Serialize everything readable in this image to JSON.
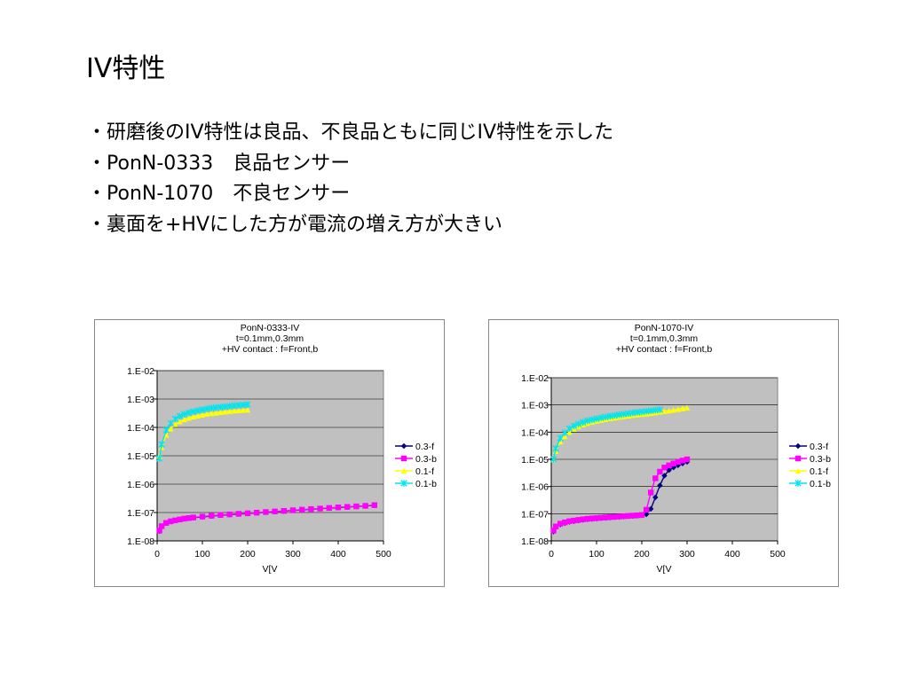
{
  "slide": {
    "title": "IV特性",
    "bullets": [
      "・研磨後のIV特性は良品、不良品ともに同じIV特性を示した",
      "・PonN-0333　良品センサー",
      "・PonN-1070　不良センサー",
      "・裏面を+HVにした方が電流の増え方が大きい"
    ]
  },
  "chart_data": [
    {
      "type": "scatter",
      "title": "PonN-0333-IV",
      "subtitle": [
        "t=0.1mm,0.3mm",
        "+HV contact : f=Front,b"
      ],
      "xlabel": "V[V",
      "ylabel": "",
      "xlim": [
        0,
        500
      ],
      "ylim": [
        1e-08,
        0.01
      ],
      "yscale": "log",
      "xticks": [
        0,
        100,
        200,
        300,
        400,
        500
      ],
      "yticks": [
        "1.E-08",
        "1.E-07",
        "1.E-06",
        "1.E-05",
        "1.E-04",
        "1.E-03",
        "1.E-02"
      ],
      "grid": true,
      "plot_background": "#c0c0c0",
      "legend_position": "right",
      "legend": [
        "0.3-f",
        "0.3-b",
        "0.1-f",
        "0.1-b"
      ],
      "series": [
        {
          "name": "0.3-f",
          "color": "#000080",
          "marker": "diamond",
          "x": [
            5,
            10,
            20,
            30,
            40,
            50,
            60,
            70,
            80,
            100,
            120,
            140,
            160,
            180,
            200,
            220,
            240,
            260,
            280,
            300,
            320,
            340,
            360,
            380,
            400,
            420,
            440,
            460,
            480
          ],
          "y": [
            2.2e-08,
            3.2e-08,
            4.2e-08,
            4.8e-08,
            5.2e-08,
            5.6e-08,
            6e-08,
            6.3e-08,
            6.6e-08,
            7e-08,
            7.5e-08,
            8e-08,
            8.4e-08,
            8.8e-08,
            9.2e-08,
            9.7e-08,
            1.02e-07,
            1.07e-07,
            1.12e-07,
            1.18e-07,
            1.24e-07,
            1.3e-07,
            1.36e-07,
            1.43e-07,
            1.5e-07,
            1.56e-07,
            1.63e-07,
            1.7e-07,
            1.8e-07
          ]
        },
        {
          "name": "0.3-b",
          "color": "#ff00ff",
          "marker": "square",
          "x": [
            5,
            10,
            20,
            30,
            40,
            50,
            60,
            70,
            80,
            100,
            120,
            140,
            160,
            180,
            200,
            220,
            240,
            260,
            280,
            300,
            320,
            340,
            360,
            380,
            400,
            420,
            440,
            460,
            480
          ],
          "y": [
            2.3e-08,
            3.3e-08,
            4.3e-08,
            4.9e-08,
            5.3e-08,
            5.7e-08,
            6.1e-08,
            6.4e-08,
            6.7e-08,
            7.2e-08,
            7.7e-08,
            8.2e-08,
            8.6e-08,
            9e-08,
            9.4e-08,
            9.9e-08,
            1.04e-07,
            1.09e-07,
            1.14e-07,
            1.2e-07,
            1.26e-07,
            1.32e-07,
            1.38e-07,
            1.45e-07,
            1.52e-07,
            1.58e-07,
            1.65e-07,
            1.72e-07,
            1.82e-07
          ]
        },
        {
          "name": "0.1-f",
          "color": "#ffff00",
          "marker": "triangle",
          "x": [
            5,
            10,
            20,
            30,
            40,
            50,
            60,
            70,
            80,
            90,
            100,
            110,
            120,
            130,
            140,
            150,
            160,
            170,
            180,
            190,
            200
          ],
          "y": [
            1e-05,
            2e-05,
            5.5e-05,
            9e-05,
            0.00013,
            0.00016,
            0.00019,
            0.000215,
            0.00024,
            0.00026,
            0.00028,
            0.0003,
            0.000315,
            0.00033,
            0.000345,
            0.00036,
            0.000375,
            0.00039,
            0.0004,
            0.00041,
            0.00042
          ]
        },
        {
          "name": "0.1-b",
          "color": "#00e5ee",
          "marker": "x",
          "x": [
            5,
            10,
            20,
            30,
            40,
            50,
            60,
            70,
            80,
            90,
            100,
            110,
            120,
            130,
            140,
            150,
            160,
            170,
            180,
            190,
            200
          ],
          "y": [
            8e-06,
            2.5e-05,
            8e-05,
            0.00014,
            0.0002,
            0.00025,
            0.00029,
            0.00033,
            0.00036,
            0.00039,
            0.00042,
            0.00045,
            0.00048,
            0.0005,
            0.00052,
            0.00054,
            0.00056,
            0.00058,
            0.0006,
            0.00062,
            0.00064
          ]
        }
      ]
    },
    {
      "type": "scatter",
      "title": "PonN-1070-IV",
      "subtitle": [
        "t=0.1mm,0.3mm",
        "+HV contact : f=Front,b"
      ],
      "xlabel": "V[V",
      "ylabel": "",
      "xlim": [
        0,
        500
      ],
      "ylim": [
        1e-08,
        0.01
      ],
      "yscale": "log",
      "xticks": [
        0,
        100,
        200,
        300,
        400,
        500
      ],
      "yticks": [
        "1.E-08",
        "1.E-07",
        "1.E-06",
        "1.E-05",
        "1.E-04",
        "1.E-03",
        "1.E-02"
      ],
      "grid": true,
      "plot_background": "#c0c0c0",
      "legend_position": "right",
      "legend": [
        "0.3-f",
        "0.3-b",
        "0.1-f",
        "0.1-b"
      ],
      "series": [
        {
          "name": "0.3-f",
          "color": "#000080",
          "marker": "diamond",
          "x": [
            5,
            10,
            20,
            30,
            40,
            50,
            60,
            70,
            80,
            90,
            100,
            110,
            120,
            130,
            140,
            150,
            160,
            170,
            180,
            190,
            200,
            210,
            220,
            230,
            240,
            250,
            260,
            270,
            280,
            290,
            300
          ],
          "y": [
            2.2e-08,
            3.2e-08,
            4e-08,
            4.5e-08,
            5e-08,
            5.3e-08,
            5.6e-08,
            5.9e-08,
            6.2e-08,
            6.4e-08,
            6.6e-08,
            6.8e-08,
            7e-08,
            7.2e-08,
            7.4e-08,
            7.6e-08,
            7.8e-08,
            8e-08,
            8.2e-08,
            8.4e-08,
            8.6e-08,
            9.5e-08,
            1.5e-07,
            4e-07,
            1.1e-06,
            2.5e-06,
            4e-06,
            5e-06,
            6e-06,
            7e-06,
            8e-06
          ]
        },
        {
          "name": "0.3-b",
          "color": "#ff00ff",
          "marker": "square",
          "x": [
            5,
            10,
            20,
            30,
            40,
            50,
            60,
            70,
            80,
            90,
            100,
            110,
            120,
            130,
            140,
            150,
            160,
            170,
            180,
            190,
            200,
            210,
            220,
            230,
            240,
            250,
            260,
            270,
            280,
            290,
            300
          ],
          "y": [
            2.4e-08,
            3.4e-08,
            4.3e-08,
            4.8e-08,
            5.3e-08,
            5.6e-08,
            5.9e-08,
            6.2e-08,
            6.5e-08,
            6.7e-08,
            6.9e-08,
            7.1e-08,
            7.3e-08,
            7.5e-08,
            7.7e-08,
            7.9e-08,
            8.1e-08,
            8.3e-08,
            8.5e-08,
            8.7e-08,
            9e-08,
            1.4e-07,
            6e-07,
            2e-06,
            3.5e-06,
            5e-06,
            6e-06,
            7e-06,
            8e-06,
            9e-06,
            1e-05
          ]
        },
        {
          "name": "0.1-f",
          "color": "#ffff00",
          "marker": "triangle",
          "x": [
            5,
            10,
            20,
            30,
            40,
            50,
            60,
            70,
            80,
            90,
            100,
            110,
            120,
            130,
            140,
            150,
            160,
            170,
            180,
            190,
            200,
            210,
            220,
            230,
            240,
            250,
            260,
            270,
            280,
            290,
            300
          ],
          "y": [
            1e-05,
            2e-05,
            4.5e-05,
            7e-05,
            0.0001,
            0.00013,
            0.00016,
            0.00019,
            0.000215,
            0.00024,
            0.00026,
            0.00028,
            0.0003,
            0.00032,
            0.00034,
            0.00036,
            0.00038,
            0.0004,
            0.00042,
            0.00044,
            0.00046,
            0.00048,
            0.0005,
            0.00053,
            0.00056,
            0.00059,
            0.00062,
            0.00066,
            0.0007,
            0.00075,
            0.0008
          ]
        },
        {
          "name": "0.1-b",
          "color": "#00e5ee",
          "marker": "x",
          "x": [
            5,
            10,
            20,
            30,
            40,
            50,
            60,
            70,
            80,
            90,
            100,
            110,
            120,
            130,
            140,
            150,
            160,
            170,
            180,
            190,
            200,
            210,
            220,
            230,
            240
          ],
          "y": [
            1e-05,
            2.5e-05,
            6e-05,
            9.5e-05,
            0.000135,
            0.00017,
            0.0002,
            0.00023,
            0.00026,
            0.000285,
            0.00031,
            0.000335,
            0.00036,
            0.000385,
            0.00041,
            0.000435,
            0.00046,
            0.000485,
            0.00051,
            0.000535,
            0.00056,
            0.000585,
            0.00061,
            0.00064,
            0.00067
          ]
        }
      ]
    }
  ]
}
